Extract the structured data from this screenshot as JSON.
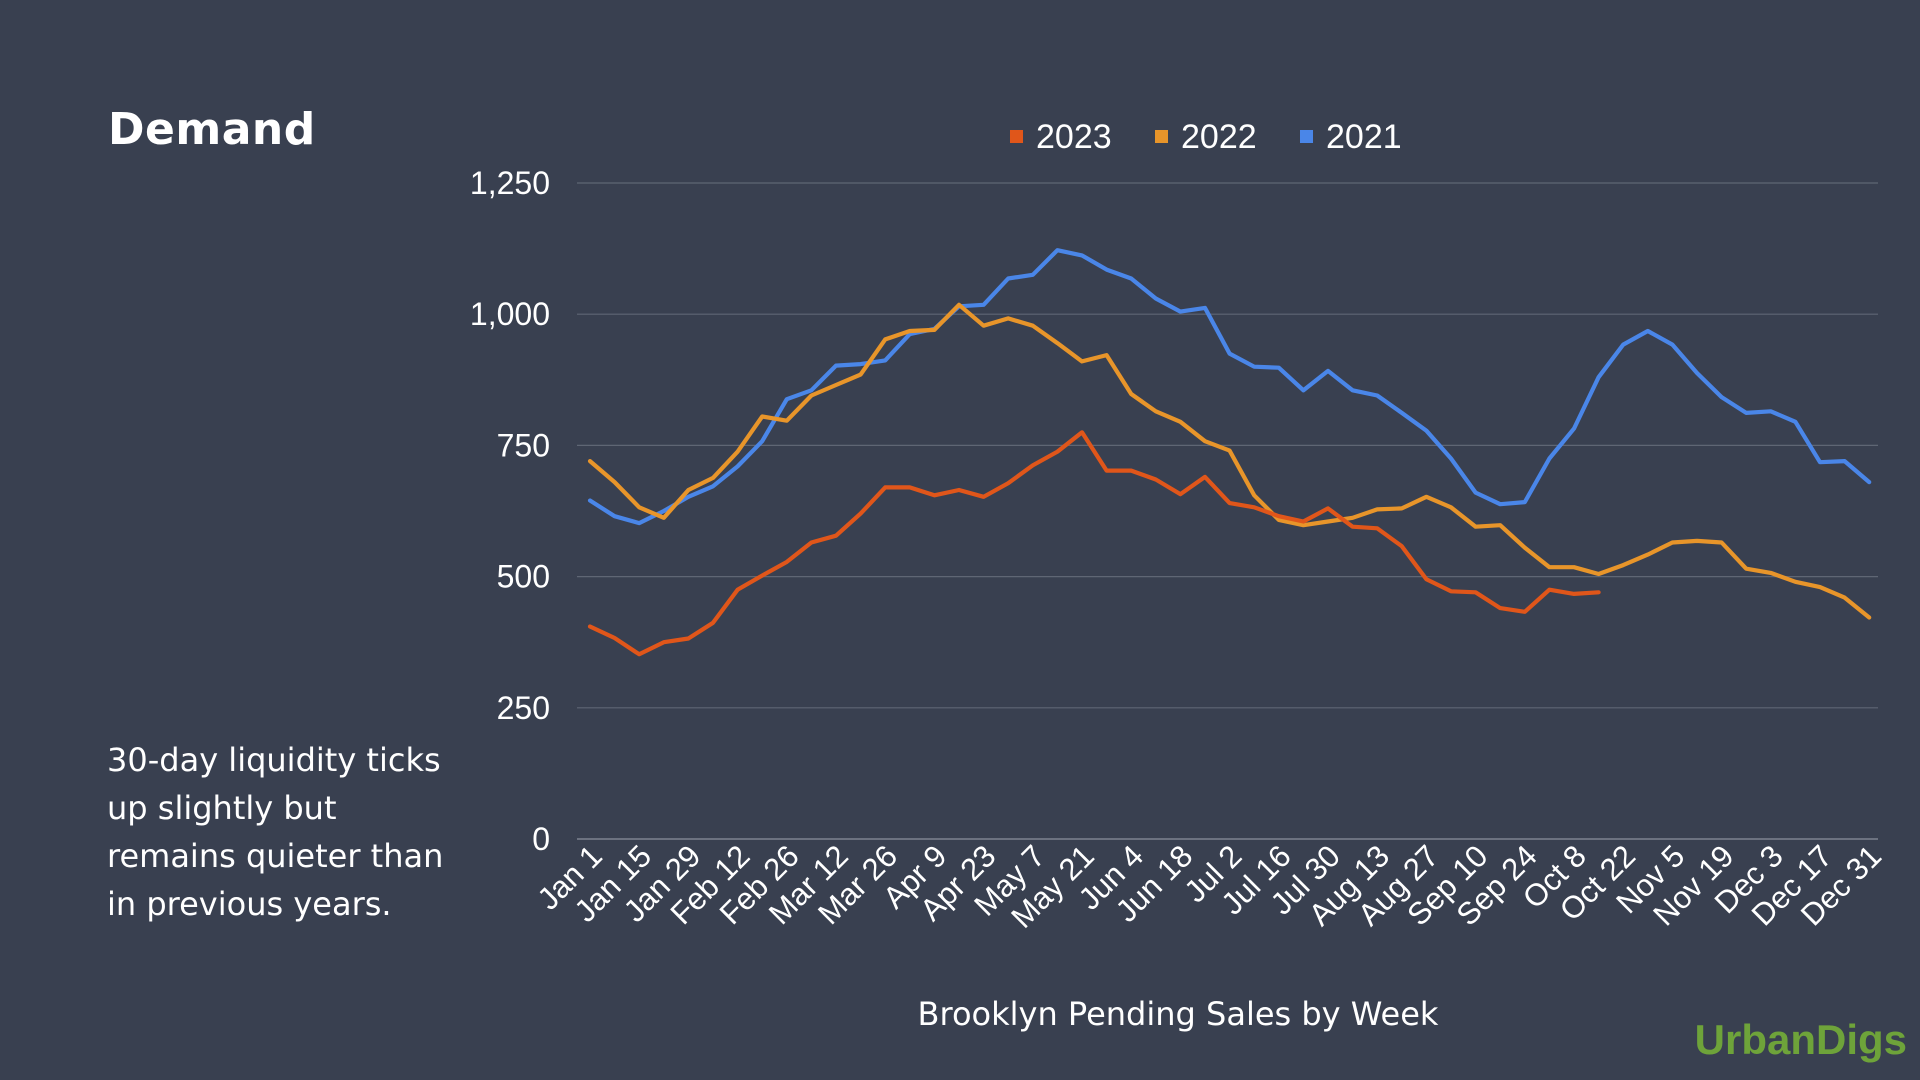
{
  "header": {
    "title": "Demand"
  },
  "caption": "30-day liquidity ticks up slightly but remains quieter than in previous years.",
  "brand": "UrbanDigs",
  "chart_data": {
    "type": "line",
    "title": "",
    "xlabel": "Brooklyn Pending Sales by Week",
    "ylabel": "",
    "ylim": [
      0,
      1250
    ],
    "yticks": [
      "0",
      "250",
      "500",
      "750",
      "1,000",
      "1,250"
    ],
    "x_ticks": [
      "Jan 1",
      "Jan 15",
      "Jan 29",
      "Feb 12",
      "Feb 26",
      "Mar 12",
      "Mar 26",
      "Apr 9",
      "Apr 23",
      "May 7",
      "May 21",
      "Jun 4",
      "Jun 18",
      "Jul 2",
      "Jul 16",
      "Jul 30",
      "Aug 13",
      "Aug 27",
      "Sep 10",
      "Sep 24",
      "Oct 8",
      "Oct 22",
      "Nov 5",
      "Nov 19",
      "Dec 3",
      "Dec 17",
      "Dec 31"
    ],
    "grid": true,
    "legend_position": "top-center",
    "series": [
      {
        "name": "2023",
        "color": "#e0561a",
        "values": [
          405,
          383,
          352,
          375,
          382,
          412,
          475,
          502,
          528,
          565,
          578,
          620,
          670,
          670,
          655,
          665,
          652,
          678,
          712,
          738,
          775,
          702,
          702,
          685,
          657,
          690,
          640,
          632,
          615,
          605,
          630,
          595,
          592,
          558,
          495,
          472,
          470,
          440,
          433,
          475,
          467,
          470
        ]
      },
      {
        "name": "2022",
        "color": "#e8952a",
        "values": [
          720,
          680,
          632,
          612,
          665,
          688,
          738,
          805,
          797,
          845,
          865,
          885,
          952,
          968,
          970,
          1018,
          978,
          992,
          978,
          945,
          910,
          922,
          848,
          815,
          795,
          758,
          740,
          655,
          608,
          598,
          605,
          612,
          628,
          630,
          652,
          632,
          595,
          598,
          555,
          518,
          518,
          505,
          522,
          542,
          565,
          568,
          565,
          515,
          507,
          490,
          480,
          460,
          422
        ]
      },
      {
        "name": "2021",
        "color": "#4a86e8",
        "values": [
          645,
          615,
          602,
          625,
          652,
          672,
          710,
          758,
          838,
          855,
          902,
          905,
          912,
          962,
          972,
          1015,
          1018,
          1068,
          1075,
          1122,
          1112,
          1085,
          1068,
          1030,
          1005,
          1012,
          925,
          900,
          898,
          855,
          892,
          855,
          845,
          812,
          778,
          725,
          660,
          638,
          642,
          725,
          782,
          880,
          942,
          968,
          942,
          888,
          842,
          812,
          815,
          795,
          718,
          720,
          680
        ]
      }
    ]
  }
}
